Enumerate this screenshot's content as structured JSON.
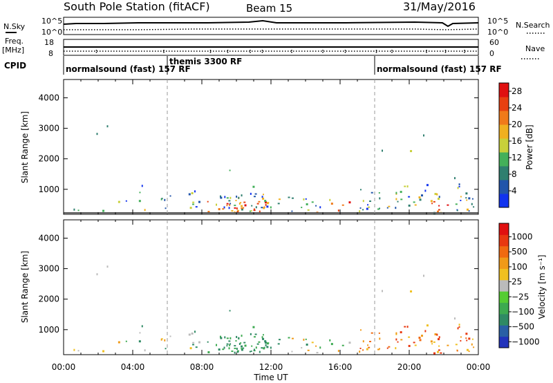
{
  "header": {
    "station": "South Pole Station (fitACF)",
    "beam": "Beam 15",
    "date": "31/May/2016"
  },
  "status": {
    "nsky_label": "N.Sky",
    "nsearch_label": "N.Search",
    "freq_label_1": "Freq.",
    "freq_label_2": "[MHz]",
    "nave_label": "Nave",
    "cpid_label": "CPID",
    "left_ticks_top": [
      "10^5",
      "10^0"
    ],
    "right_ticks_top": [
      "10^5",
      "10^0"
    ],
    "left_ticks_freq": [
      "18",
      "8"
    ],
    "right_ticks_nave": [
      "60",
      "0"
    ]
  },
  "cpid": {
    "segments": [
      "normalsound (fast) 157 RF",
      "themis 3300 RF",
      "normalsound (fast) 157 RF"
    ],
    "boundaries_hours": [
      6,
      18
    ]
  },
  "chart_data": [
    {
      "type": "heatmap",
      "name": "power",
      "ylabel": "Slant Range [km]",
      "x_range_hours": [
        0,
        24
      ],
      "ylim": [
        180,
        4600
      ],
      "yticks": [
        1000,
        2000,
        3000,
        4000
      ],
      "colorbar": {
        "label": "Power [dB]",
        "ticks": [
          "4",
          "8",
          "12",
          "16",
          "20",
          "24",
          "28"
        ],
        "range": [
          0,
          30
        ],
        "colors": [
          "#1133ee",
          "#2255aa",
          "#2f7f6f",
          "#44b05a",
          "#c8d03a",
          "#f0b020",
          "#f07a1a",
          "#e84010",
          "#e01010"
        ]
      }
    },
    {
      "type": "heatmap",
      "name": "velocity",
      "xlabel": "Time UT",
      "ylabel": "Slant Range [km]",
      "x_range_hours": [
        0,
        24
      ],
      "xticks": [
        "00:00",
        "04:00",
        "08:00",
        "12:00",
        "16:00",
        "20:00",
        "00:00"
      ],
      "ylim": [
        180,
        4600
      ],
      "yticks": [
        1000,
        2000,
        3000,
        4000
      ],
      "colorbar": {
        "label": "Velocity [m s⁻¹]",
        "ticks": [
          "1000",
          "500",
          "100",
          "25",
          "−25",
          "−100",
          "−500",
          "−1000"
        ],
        "colors": [
          "#2233bb",
          "#2a5fa5",
          "#2f8a64",
          "#3daa50",
          "#55cc33",
          "#bbbbbb",
          "#f0c020",
          "#f09a18",
          "#f06a10",
          "#e83810",
          "#e01010"
        ]
      }
    }
  ]
}
